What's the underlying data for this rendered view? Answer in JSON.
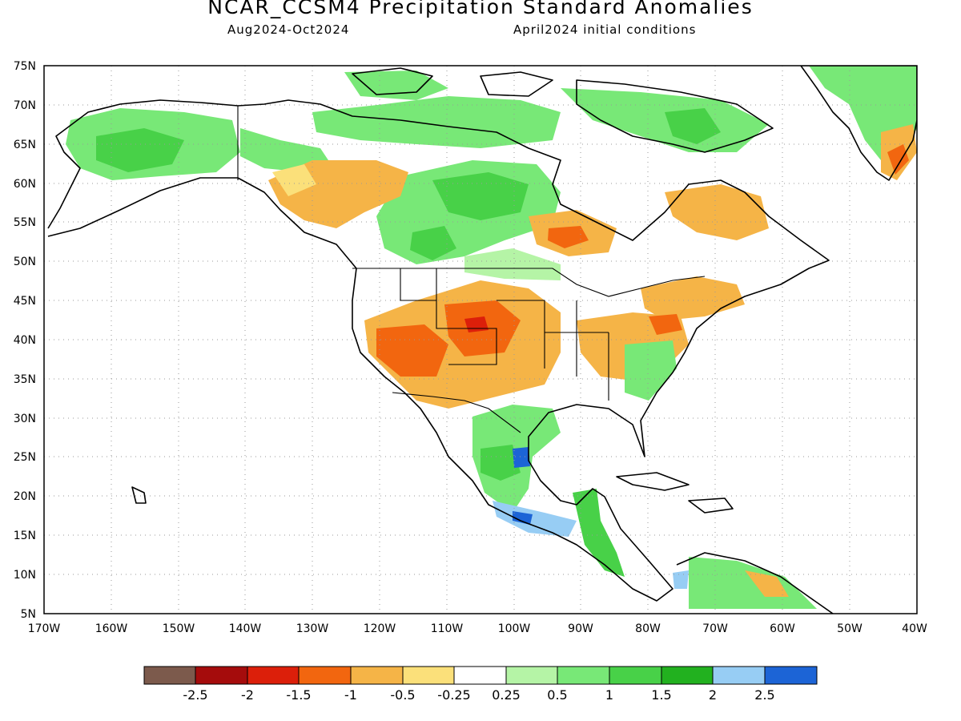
{
  "header": {
    "title": "NCAR_CCSM4 Precipitation Standard Anomalies",
    "period": "Aug2024-Oct2024",
    "init": "April2024 initial conditions"
  },
  "map": {
    "lat_ticks": [
      "75N",
      "70N",
      "65N",
      "60N",
      "55N",
      "50N",
      "45N",
      "40N",
      "35N",
      "30N",
      "25N",
      "20N",
      "15N",
      "10N",
      "5N"
    ],
    "lon_ticks": [
      "170W",
      "160W",
      "150W",
      "140W",
      "130W",
      "120W",
      "110W",
      "100W",
      "90W",
      "80W",
      "70W",
      "60W",
      "50W",
      "40W"
    ],
    "lat_range": [
      5,
      75
    ],
    "lon_range": [
      -170,
      -40
    ],
    "grid": "dotted"
  },
  "legend": {
    "colors": [
      "#7c5a4c",
      "#a50c0c",
      "#dc1f0a",
      "#f2660f",
      "#f5b447",
      "#fbe07a",
      "#ffffff",
      "#b5f4a6",
      "#78e877",
      "#48d148",
      "#22b11f",
      "#97cdf4",
      "#1c64d6"
    ],
    "labels": [
      "-2.5",
      "-2",
      "-1.5",
      "-1",
      "-0.5",
      "-0.25",
      "0.25",
      "0.5",
      "1",
      "1.5",
      "2",
      "2.5"
    ]
  },
  "palette": {
    "dry_strong": "#f2660f",
    "dry": "#f5b447",
    "dry_light": "#fbe07a",
    "wet_light": "#b5f4a6",
    "wet": "#78e877",
    "wet_mid": "#48d148",
    "wet_strong": "#22b11f",
    "very_wet": "#97cdf4",
    "extreme_wet": "#1c64d6",
    "extreme_dry": "#dc1f0a"
  }
}
